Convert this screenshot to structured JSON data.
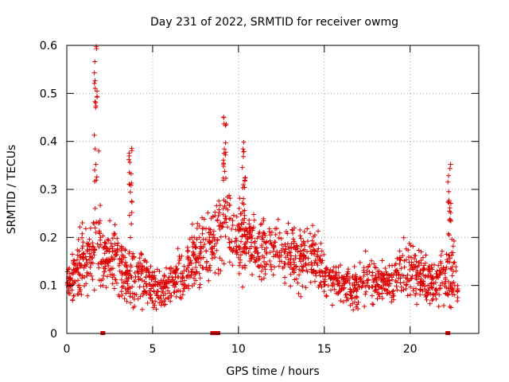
{
  "chart_data": {
    "type": "scatter",
    "title": "Day 231 of 2022, SRMTID for receiver owmg",
    "xlabel": "GPS time / hours",
    "ylabel": "SRMTID / TECUs",
    "xlim": [
      0,
      24
    ],
    "ylim": [
      0,
      0.6
    ],
    "xticks": [
      0,
      5,
      10,
      15,
      20
    ],
    "yticks": [
      0,
      0.1,
      0.2,
      0.3,
      0.4,
      0.5,
      0.6
    ],
    "grid": true,
    "marker": "+",
    "color": "#dd0000",
    "series_envelope": {
      "name": "SRMTID",
      "hours": [
        0.0,
        0.5,
        1.0,
        1.5,
        1.8,
        2.0,
        2.5,
        3.0,
        3.5,
        4.0,
        4.5,
        5.0,
        5.5,
        6.0,
        6.5,
        7.0,
        7.5,
        8.0,
        8.5,
        9.0,
        9.3,
        9.5,
        10.0,
        10.5,
        11.0,
        11.5,
        12.0,
        12.5,
        13.0,
        13.5,
        14.0,
        14.5,
        15.0,
        15.5,
        16.0,
        16.5,
        17.0,
        17.5,
        18.0,
        18.5,
        19.0,
        19.5,
        20.0,
        20.5,
        21.0,
        21.5,
        22.0,
        22.5,
        22.8
      ],
      "typical": [
        0.1,
        0.12,
        0.15,
        0.16,
        0.25,
        0.14,
        0.17,
        0.15,
        0.12,
        0.13,
        0.11,
        0.1,
        0.09,
        0.1,
        0.12,
        0.14,
        0.16,
        0.18,
        0.2,
        0.22,
        0.26,
        0.22,
        0.2,
        0.19,
        0.18,
        0.17,
        0.18,
        0.17,
        0.16,
        0.15,
        0.17,
        0.16,
        0.12,
        0.11,
        0.1,
        0.09,
        0.1,
        0.11,
        0.1,
        0.1,
        0.11,
        0.13,
        0.14,
        0.12,
        0.11,
        0.1,
        0.12,
        0.13,
        0.09
      ],
      "spread": [
        0.05,
        0.08,
        0.1,
        0.1,
        0.3,
        0.1,
        0.1,
        0.09,
        0.09,
        0.12,
        0.08,
        0.07,
        0.06,
        0.06,
        0.07,
        0.08,
        0.09,
        0.09,
        0.11,
        0.13,
        0.2,
        0.11,
        0.12,
        0.1,
        0.09,
        0.09,
        0.09,
        0.09,
        0.09,
        0.09,
        0.1,
        0.09,
        0.07,
        0.06,
        0.06,
        0.06,
        0.07,
        0.08,
        0.06,
        0.06,
        0.06,
        0.08,
        0.09,
        0.07,
        0.07,
        0.07,
        0.09,
        0.1,
        0.05
      ],
      "peaks": [
        {
          "x": 1.7,
          "y": 0.6
        },
        {
          "x": 9.2,
          "y": 0.47
        },
        {
          "x": 3.7,
          "y": 0.39
        },
        {
          "x": 10.3,
          "y": 0.41
        },
        {
          "x": 22.3,
          "y": 0.36
        }
      ]
    },
    "zero_markers_x": [
      2.1,
      8.5,
      8.7,
      8.8,
      22.2
    ]
  }
}
